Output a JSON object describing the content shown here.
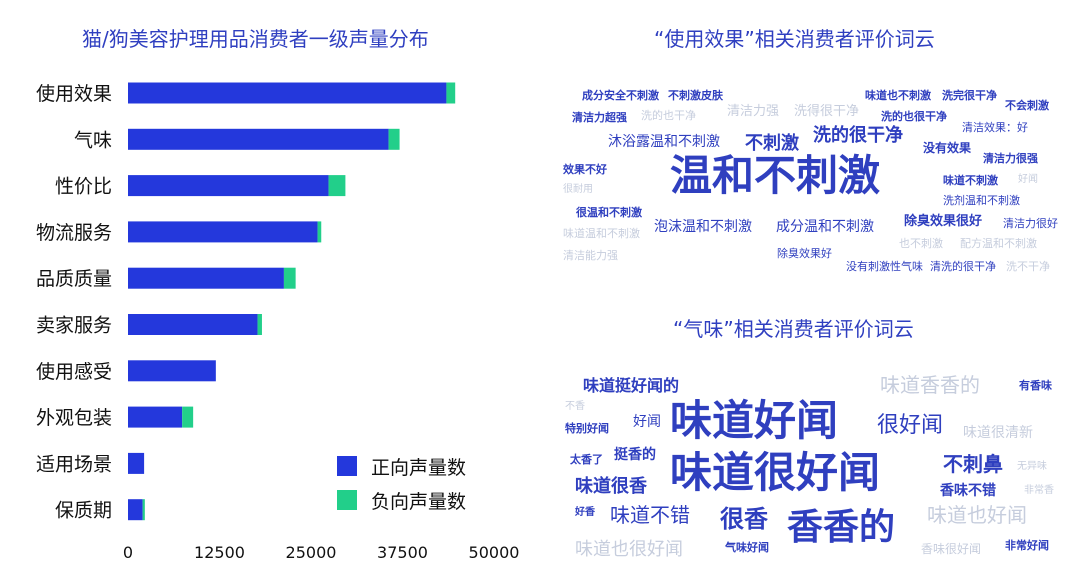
{
  "colors": {
    "positive": "#2438dc",
    "negative": "#22cf8a",
    "title": "#2f3fc0",
    "word_dark": "#2f3fbf",
    "word_light": "#c6cddd"
  },
  "chart_data": {
    "type": "bar",
    "orientation": "horizontal",
    "stacked": true,
    "title": "猫/狗美容护理用品消费者一级声量分布",
    "categories": [
      "使用效果",
      "气味",
      "性价比",
      "物流服务",
      "品质质量",
      "卖家服务",
      "使用感受",
      "外观包装",
      "适用场景",
      "保质期"
    ],
    "series": [
      {
        "name": "正向声量数",
        "values": [
          43500,
          35600,
          27400,
          25900,
          21300,
          17700,
          12000,
          7400,
          2200,
          2000
        ]
      },
      {
        "name": "负向声量数",
        "values": [
          1200,
          1500,
          2300,
          500,
          1600,
          600,
          0,
          1500,
          0,
          300
        ]
      }
    ],
    "xticks": [
      "0",
      "12500",
      "25000",
      "37500",
      "50000"
    ],
    "xlim": [
      0,
      50000
    ],
    "grid": false,
    "legend_position": "bottom-right"
  },
  "cloud1": {
    "title": "“使用效果”相关消费者评价词云",
    "words": [
      {
        "text": "成分安全不刺激",
        "size": 11,
        "bold": true,
        "tone": "dark"
      },
      {
        "text": "不刺激皮肤",
        "size": 11,
        "bold": true,
        "tone": "dark"
      },
      {
        "text": "味道也不刺激",
        "size": 11,
        "bold": true,
        "tone": "dark"
      },
      {
        "text": "洗完很干净",
        "size": 11,
        "bold": true,
        "tone": "dark"
      },
      {
        "text": "不会刺激",
        "size": 11,
        "bold": true,
        "tone": "dark"
      },
      {
        "text": "清洁力超强",
        "size": 11,
        "bold": true,
        "tone": "dark"
      },
      {
        "text": "洗的也干净",
        "size": 11,
        "bold": false,
        "tone": "light"
      },
      {
        "text": "清洁力强",
        "size": 13,
        "bold": false,
        "tone": "light"
      },
      {
        "text": "洗得很干净",
        "size": 13,
        "bold": false,
        "tone": "light"
      },
      {
        "text": "洗的也很干净",
        "size": 11,
        "bold": true,
        "tone": "dark"
      },
      {
        "text": "清洁效果：好",
        "size": 11,
        "bold": false,
        "tone": "dark"
      },
      {
        "text": "沐浴露温和不刺激",
        "size": 14,
        "bold": false,
        "tone": "dark"
      },
      {
        "text": "不刺激",
        "size": 18,
        "bold": true,
        "tone": "dark"
      },
      {
        "text": "洗的很干净",
        "size": 18,
        "bold": true,
        "tone": "dark"
      },
      {
        "text": "没有效果",
        "size": 12,
        "bold": true,
        "tone": "dark"
      },
      {
        "text": "清洁力很强",
        "size": 11,
        "bold": true,
        "tone": "dark"
      },
      {
        "text": "效果不好",
        "size": 11,
        "bold": true,
        "tone": "dark"
      },
      {
        "text": "温和不刺激",
        "size": 42,
        "bold": true,
        "tone": "dark"
      },
      {
        "text": "味道不刺激",
        "size": 11,
        "bold": true,
        "tone": "dark"
      },
      {
        "text": "好闻",
        "size": 10,
        "bold": false,
        "tone": "light"
      },
      {
        "text": "很耐用",
        "size": 10,
        "bold": false,
        "tone": "light"
      },
      {
        "text": "洗剂温和不刺激",
        "size": 11,
        "bold": false,
        "tone": "dark"
      },
      {
        "text": "很温和不刺激",
        "size": 11,
        "bold": true,
        "tone": "dark"
      },
      {
        "text": "除臭效果很好",
        "size": 13,
        "bold": true,
        "tone": "dark"
      },
      {
        "text": "清洁力很好",
        "size": 11,
        "bold": false,
        "tone": "dark"
      },
      {
        "text": "味道温和不刺激",
        "size": 11,
        "bold": false,
        "tone": "light"
      },
      {
        "text": "泡沫温和不刺激",
        "size": 14,
        "bold": false,
        "tone": "dark"
      },
      {
        "text": "成分温和不刺激",
        "size": 14,
        "bold": false,
        "tone": "dark"
      },
      {
        "text": "也不刺激",
        "size": 11,
        "bold": false,
        "tone": "light"
      },
      {
        "text": "配方温和不刺激",
        "size": 11,
        "bold": false,
        "tone": "light"
      },
      {
        "text": "清洁能力强",
        "size": 11,
        "bold": false,
        "tone": "light"
      },
      {
        "text": "除臭效果好",
        "size": 11,
        "bold": false,
        "tone": "dark"
      },
      {
        "text": "没有刺激性气味",
        "size": 11,
        "bold": false,
        "tone": "dark"
      },
      {
        "text": "清洗的很干净",
        "size": 11,
        "bold": false,
        "tone": "dark"
      },
      {
        "text": "洗不干净",
        "size": 11,
        "bold": false,
        "tone": "light"
      }
    ]
  },
  "cloud2": {
    "title": "“气味”相关消费者评价词云",
    "words": [
      {
        "text": "味道挺好闻的",
        "size": 16,
        "bold": true,
        "tone": "dark"
      },
      {
        "text": "味道香香的",
        "size": 20,
        "bold": false,
        "tone": "light"
      },
      {
        "text": "有香味",
        "size": 11,
        "bold": true,
        "tone": "dark"
      },
      {
        "text": "不香",
        "size": 10,
        "bold": false,
        "tone": "light"
      },
      {
        "text": "好闻",
        "size": 14,
        "bold": false,
        "tone": "dark"
      },
      {
        "text": "味道好闻",
        "size": 42,
        "bold": true,
        "tone": "dark"
      },
      {
        "text": "很好闻",
        "size": 22,
        "bold": false,
        "tone": "dark"
      },
      {
        "text": "特别好闻",
        "size": 11,
        "bold": true,
        "tone": "dark"
      },
      {
        "text": "味道很清新",
        "size": 14,
        "bold": false,
        "tone": "light"
      },
      {
        "text": "太香了",
        "size": 11,
        "bold": true,
        "tone": "dark"
      },
      {
        "text": "挺香的",
        "size": 14,
        "bold": true,
        "tone": "dark"
      },
      {
        "text": "味道很好闻",
        "size": 42,
        "bold": true,
        "tone": "dark"
      },
      {
        "text": "不刺鼻",
        "size": 20,
        "bold": true,
        "tone": "dark"
      },
      {
        "text": "无异味",
        "size": 10,
        "bold": false,
        "tone": "light"
      },
      {
        "text": "味道很香",
        "size": 18,
        "bold": true,
        "tone": "dark"
      },
      {
        "text": "香味不错",
        "size": 14,
        "bold": true,
        "tone": "dark"
      },
      {
        "text": "非常香",
        "size": 10,
        "bold": false,
        "tone": "light"
      },
      {
        "text": "好香",
        "size": 10,
        "bold": true,
        "tone": "dark"
      },
      {
        "text": "味道不错",
        "size": 20,
        "bold": false,
        "tone": "dark"
      },
      {
        "text": "很香",
        "size": 24,
        "bold": true,
        "tone": "dark"
      },
      {
        "text": "香香的",
        "size": 36,
        "bold": true,
        "tone": "dark"
      },
      {
        "text": "味道也好闻",
        "size": 20,
        "bold": false,
        "tone": "light"
      },
      {
        "text": "味道也很好闻",
        "size": 18,
        "bold": false,
        "tone": "light"
      },
      {
        "text": "气味好闻",
        "size": 11,
        "bold": true,
        "tone": "dark"
      },
      {
        "text": "香味很好闻",
        "size": 12,
        "bold": false,
        "tone": "light"
      },
      {
        "text": "非常好闻",
        "size": 11,
        "bold": true,
        "tone": "dark"
      }
    ]
  }
}
